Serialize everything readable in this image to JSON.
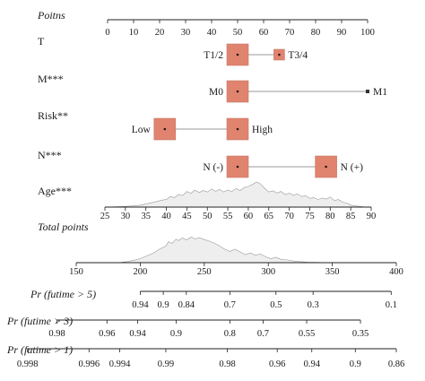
{
  "chart_data": {
    "type": "nomogram",
    "colors": {
      "box_fill": "#e0836f",
      "box_stroke": "#c97b68",
      "density_fill": "#eeeeee",
      "density_stroke": "#9a9a9a",
      "axis": "#222222",
      "connector": "#9a9a9a"
    },
    "points_scale": {
      "label": "Poitns",
      "range": [
        0,
        100
      ],
      "ticks": [
        "0",
        "10",
        "20",
        "30",
        "40",
        "50",
        "60",
        "70",
        "80",
        "90",
        "100"
      ]
    },
    "variables": [
      {
        "name": "T",
        "levels": [
          {
            "label": "T1/2",
            "points": 50,
            "box": "large"
          },
          {
            "label": "T3/4",
            "points": 66,
            "box": "small"
          }
        ]
      },
      {
        "name": "M***",
        "levels": [
          {
            "label": "M0",
            "points": 50,
            "box": "large"
          },
          {
            "label": "M1",
            "points": 100,
            "box": "tiny"
          }
        ]
      },
      {
        "name": "Risk**",
        "levels": [
          {
            "label": "Low",
            "points": 22,
            "box": "large"
          },
          {
            "label": "High",
            "points": 50,
            "box": "large"
          }
        ]
      },
      {
        "name": "N***",
        "levels": [
          {
            "label": "N (-)",
            "points": 50,
            "box": "large"
          },
          {
            "label": "N (+)",
            "points": 84,
            "box": "large"
          }
        ]
      }
    ],
    "age": {
      "name": "Age***",
      "axis_range": [
        25,
        90
      ],
      "ticks": [
        "25",
        "30",
        "35",
        "40",
        "45",
        "50",
        "55",
        "60",
        "65",
        "70",
        "75",
        "80",
        "85",
        "90"
      ],
      "density": [
        [
          27,
          0.01
        ],
        [
          30,
          0.03
        ],
        [
          33,
          0.06
        ],
        [
          35,
          0.12
        ],
        [
          37,
          0.2
        ],
        [
          39,
          0.28
        ],
        [
          40,
          0.3
        ],
        [
          41,
          0.42
        ],
        [
          42,
          0.38
        ],
        [
          43,
          0.5
        ],
        [
          44,
          0.46
        ],
        [
          45,
          0.62
        ],
        [
          46,
          0.55
        ],
        [
          47,
          0.68
        ],
        [
          48,
          0.58
        ],
        [
          49,
          0.66
        ],
        [
          50,
          0.6
        ],
        [
          51,
          0.72
        ],
        [
          52,
          0.63
        ],
        [
          53,
          0.7
        ],
        [
          54,
          0.6
        ],
        [
          55,
          0.68
        ],
        [
          56,
          0.62
        ],
        [
          57,
          0.74
        ],
        [
          58,
          0.66
        ],
        [
          59,
          0.78
        ],
        [
          60,
          0.82
        ],
        [
          61,
          0.9
        ],
        [
          62,
          1.0
        ],
        [
          63,
          0.92
        ],
        [
          64,
          0.75
        ],
        [
          65,
          0.6
        ],
        [
          66,
          0.65
        ],
        [
          67,
          0.56
        ],
        [
          68,
          0.62
        ],
        [
          69,
          0.5
        ],
        [
          70,
          0.55
        ],
        [
          71,
          0.48
        ],
        [
          72,
          0.52
        ],
        [
          73,
          0.42
        ],
        [
          74,
          0.45
        ],
        [
          75,
          0.35
        ],
        [
          76,
          0.38
        ],
        [
          77,
          0.3
        ],
        [
          78,
          0.36
        ],
        [
          79,
          0.32
        ],
        [
          80,
          0.4
        ],
        [
          81,
          0.26
        ],
        [
          82,
          0.3
        ],
        [
          83,
          0.2
        ],
        [
          84,
          0.16
        ],
        [
          85,
          0.08
        ],
        [
          86,
          0.05
        ],
        [
          88,
          0.01
        ]
      ]
    },
    "total_points": {
      "label": "Total points",
      "axis_range": [
        150,
        400
      ],
      "ticks": [
        "150",
        "200",
        "250",
        "300",
        "350",
        "400"
      ],
      "density": [
        [
          185,
          0.01
        ],
        [
          190,
          0.04
        ],
        [
          195,
          0.09
        ],
        [
          200,
          0.15
        ],
        [
          205,
          0.25
        ],
        [
          210,
          0.35
        ],
        [
          215,
          0.5
        ],
        [
          220,
          0.62
        ],
        [
          222,
          0.78
        ],
        [
          225,
          0.72
        ],
        [
          228,
          0.88
        ],
        [
          230,
          0.82
        ],
        [
          233,
          0.92
        ],
        [
          236,
          0.85
        ],
        [
          240,
          0.95
        ],
        [
          243,
          0.88
        ],
        [
          246,
          0.93
        ],
        [
          250,
          0.86
        ],
        [
          254,
          0.8
        ],
        [
          258,
          0.72
        ],
        [
          262,
          0.62
        ],
        [
          266,
          0.5
        ],
        [
          270,
          0.42
        ],
        [
          274,
          0.5
        ],
        [
          278,
          0.4
        ],
        [
          282,
          0.3
        ],
        [
          286,
          0.36
        ],
        [
          290,
          0.28
        ],
        [
          294,
          0.32
        ],
        [
          298,
          0.22
        ],
        [
          302,
          0.15
        ],
        [
          306,
          0.2
        ],
        [
          310,
          0.12
        ],
        [
          315,
          0.1
        ],
        [
          320,
          0.06
        ],
        [
          325,
          0.04
        ],
        [
          330,
          0.02
        ],
        [
          340,
          0.01
        ]
      ]
    },
    "probability_axes": [
      {
        "label": "Pr (futime > 5)",
        "ticks": [
          {
            "label": "0.94",
            "total": 200
          },
          {
            "label": "0.9",
            "total": 218
          },
          {
            "label": "0.84",
            "total": 236
          },
          {
            "label": "0.7",
            "total": 270
          },
          {
            "label": "0.5",
            "total": 306
          },
          {
            "label": "0.3",
            "total": 335
          },
          {
            "label": "0.1",
            "total": 396
          }
        ]
      },
      {
        "label": "Pr (futime > 3)",
        "ticks": [
          {
            "label": "0.98",
            "total": 135
          },
          {
            "label": "0.96",
            "total": 174
          },
          {
            "label": "0.94",
            "total": 198
          },
          {
            "label": "0.9",
            "total": 228
          },
          {
            "label": "0.8",
            "total": 270
          },
          {
            "label": "0.7",
            "total": 296
          },
          {
            "label": "0.55",
            "total": 330
          },
          {
            "label": "0.35",
            "total": 372
          }
        ]
      },
      {
        "label": "Pr (futime > 1)",
        "ticks": [
          {
            "label": "0.998",
            "total": 112
          },
          {
            "label": "0.996",
            "total": 160
          },
          {
            "label": "0.994",
            "total": 184
          },
          {
            "label": "0.99",
            "total": 220
          },
          {
            "label": "0.98",
            "total": 268
          },
          {
            "label": "0.96",
            "total": 307
          },
          {
            "label": "0.94",
            "total": 334
          },
          {
            "label": "0.9",
            "total": 368
          },
          {
            "label": "0.86",
            "total": 400
          }
        ]
      }
    ]
  }
}
